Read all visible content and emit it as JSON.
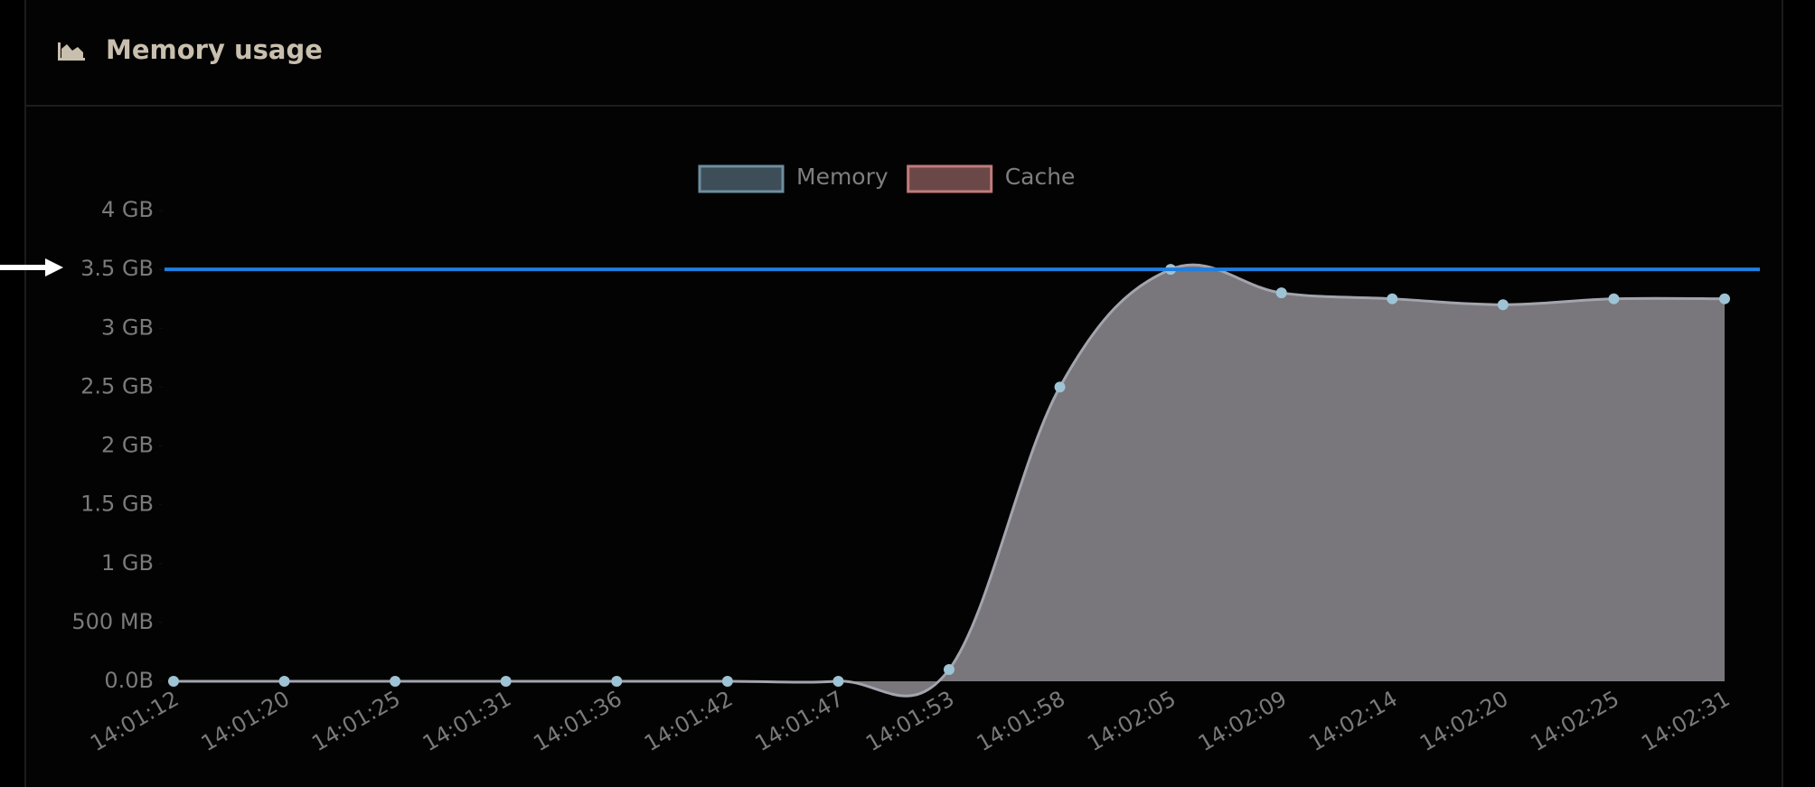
{
  "header": {
    "title": "Memory usage"
  },
  "chart_data": {
    "type": "area",
    "categories": [
      "14:01:12",
      "14:01:20",
      "14:01:25",
      "14:01:31",
      "14:01:36",
      "14:01:42",
      "14:01:47",
      "14:01:53",
      "14:01:58",
      "14:02:05",
      "14:02:09",
      "14:02:14",
      "14:02:20",
      "14:02:25",
      "14:02:31"
    ],
    "series": [
      {
        "name": "Memory",
        "color": "#79767c",
        "line_color": "#a3a5ad",
        "point_color": "#9ec3d4",
        "legend_fill": "#3e4e59",
        "legend_stroke": "#6d8e9f",
        "values": [
          0,
          0,
          0,
          0,
          0,
          0,
          0,
          0.1,
          2.5,
          3.5,
          3.3,
          3.25,
          3.2,
          3.25,
          3.25
        ]
      },
      {
        "name": "Cache",
        "legend_fill": "#6b4848",
        "legend_stroke": "#c27b7b",
        "values": [
          null,
          null,
          null,
          null,
          null,
          null,
          null,
          null,
          null,
          null,
          null,
          null,
          null,
          null,
          null
        ]
      }
    ],
    "ylim": [
      0,
      4
    ],
    "yticks": [
      {
        "value": 0,
        "label": "0.0B"
      },
      {
        "value": 0.5,
        "label": "500 MB"
      },
      {
        "value": 1,
        "label": "1 GB"
      },
      {
        "value": 1.5,
        "label": "1.5 GB"
      },
      {
        "value": 2,
        "label": "2 GB"
      },
      {
        "value": 2.5,
        "label": "2.5 GB"
      },
      {
        "value": 3,
        "label": "3 GB"
      },
      {
        "value": 3.5,
        "label": "3.5 GB"
      },
      {
        "value": 4,
        "label": "4 GB"
      }
    ],
    "reference_line": {
      "value": 3.5,
      "color": "#1f7fe0"
    }
  }
}
